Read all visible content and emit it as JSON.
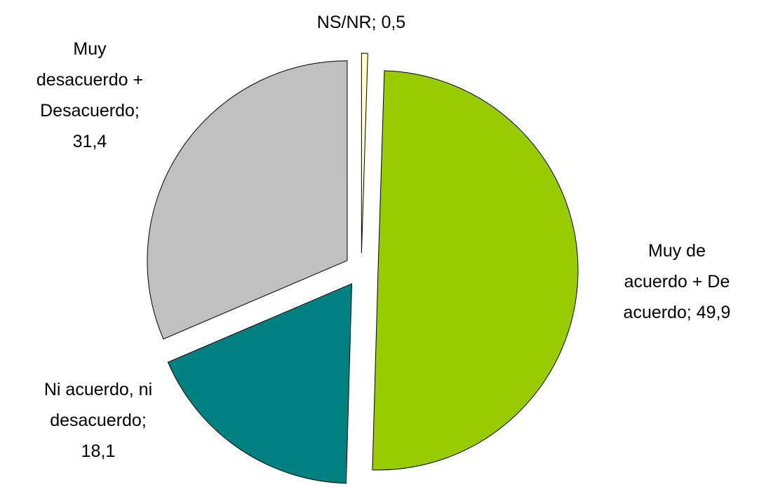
{
  "chart_data": {
    "type": "pie",
    "values": [
      49.9,
      18.1,
      31.4,
      0.5
    ],
    "value_labels": [
      "Muy de acuerdo + De acuerdo; 49,9",
      "Ni acuerdo, ni desacuerdo; 18,1",
      "Muy desacuerdo + Desacuerdo; 31,4",
      "NS/NR; 0,5"
    ],
    "colors": [
      "#99cc00",
      "#008080",
      "#c0c0c0",
      "#ffffcc"
    ]
  }
}
